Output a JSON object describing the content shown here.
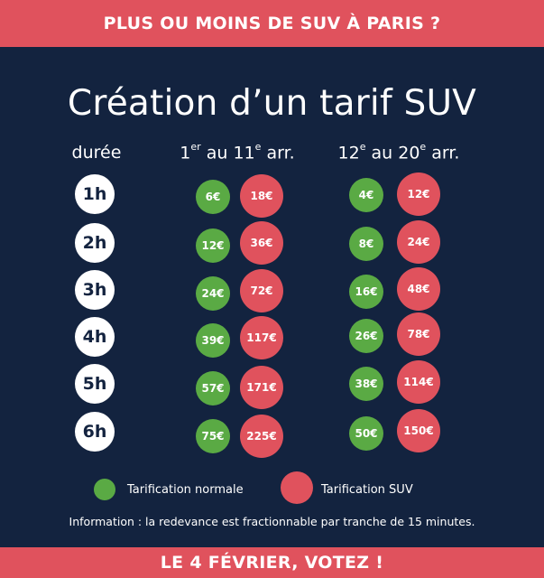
{
  "banner_top": "PLUS OU MOINS DE SUV À PARIS ?",
  "title": "Création d’un tarif SUV",
  "columns": {
    "duration": "durée",
    "zone1": {
      "from": "1",
      "from_sup": "er",
      "mid": " au 11",
      "mid_sup": "e",
      "end": " arr."
    },
    "zone2": {
      "from": "12",
      "from_sup": "e",
      "mid": " au 20",
      "mid_sup": "e",
      "end": " arr."
    }
  },
  "rows": [
    {
      "duration": "1h",
      "zone1_normal": "6€",
      "zone1_suv": "18€",
      "zone2_normal": "4€",
      "zone2_suv": "12€"
    },
    {
      "duration": "2h",
      "zone1_normal": "12€",
      "zone1_suv": "36€",
      "zone2_normal": "8€",
      "zone2_suv": "24€"
    },
    {
      "duration": "3h",
      "zone1_normal": "24€",
      "zone1_suv": "72€",
      "zone2_normal": "16€",
      "zone2_suv": "48€"
    },
    {
      "duration": "4h",
      "zone1_normal": "39€",
      "zone1_suv": "117€",
      "zone2_normal": "26€",
      "zone2_suv": "78€"
    },
    {
      "duration": "5h",
      "zone1_normal": "57€",
      "zone1_suv": "171€",
      "zone2_normal": "38€",
      "zone2_suv": "114€"
    },
    {
      "duration": "6h",
      "zone1_normal": "75€",
      "zone1_suv": "225€",
      "zone2_normal": "50€",
      "zone2_suv": "150€"
    }
  ],
  "legend": {
    "normal": "Tarification normale",
    "suv": "Tarification SUV"
  },
  "info": "Information : la redevance est fractionnable par tranche de 15 minutes.",
  "banner_bottom": "LE 4 FÉVRIER, VOTEZ !",
  "colors": {
    "background": "#13233f",
    "banner": "#e0525d",
    "normal": "#5aaa44",
    "suv": "#e0525d"
  }
}
